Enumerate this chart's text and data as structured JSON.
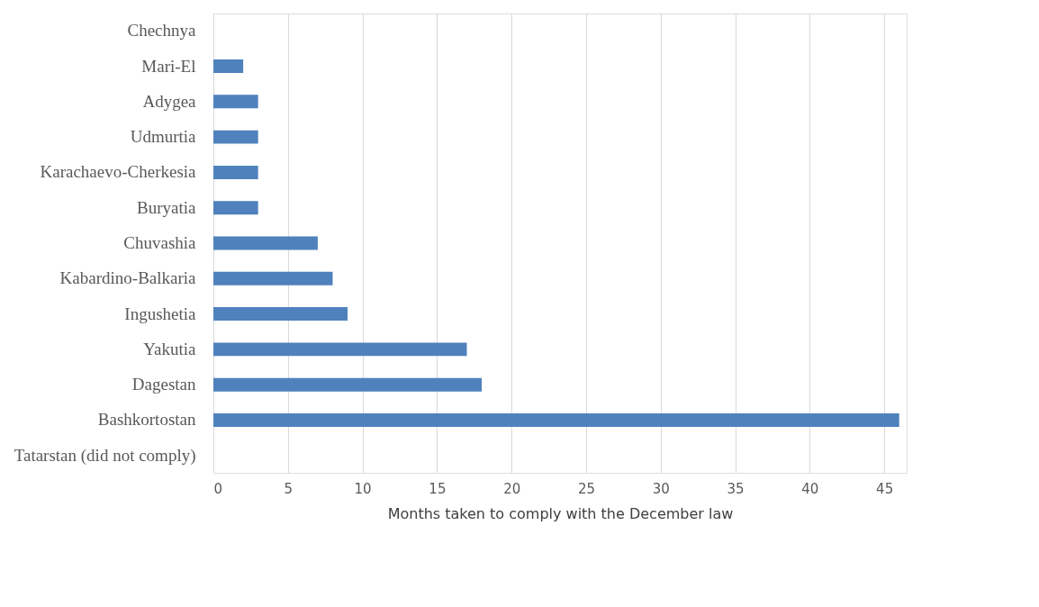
{
  "chart_data": {
    "type": "bar",
    "orientation": "horizontal",
    "xlabel": "Months taken to comply with the December law",
    "categories": [
      "Chechnya",
      "Mari-El",
      "Adygea",
      "Udmurtia",
      "Karachaevo-Cherkesia",
      "Buryatia",
      "Chuvashia",
      "Kabardino-Balkaria",
      "Ingushetia",
      "Yakutia",
      "Dagestan",
      "Bashkortostan",
      "Tatarstan (did not comply)"
    ],
    "values": [
      0,
      2,
      3,
      3,
      3,
      3,
      7,
      8,
      9,
      17,
      18,
      46,
      null
    ],
    "color": "#4f81bd",
    "xlim": [
      0,
      46.5
    ],
    "xticks": [
      0,
      5,
      10,
      15,
      20,
      25,
      30,
      35,
      40,
      45
    ],
    "grid": "x"
  }
}
